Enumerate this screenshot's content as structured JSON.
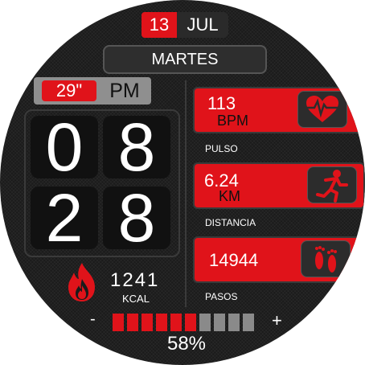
{
  "date": {
    "day": "13",
    "month": "JUL",
    "weekday": "MARTES"
  },
  "seconds": {
    "value": "29\"",
    "ampm": "PM"
  },
  "time": {
    "h1": "0",
    "h2": "8",
    "m1": "2",
    "m2": "8"
  },
  "calories": {
    "value": "1241",
    "unit": "KCAL",
    "icon": "flame-icon"
  },
  "heart": {
    "value": "113",
    "unit": "BPM",
    "label": "PULSO",
    "icon": "heart-rate-icon"
  },
  "distance": {
    "value": "6.24",
    "unit": "KM",
    "label": "DISTANCIA",
    "icon": "runner-icon"
  },
  "steps": {
    "value": "14944",
    "label": "PASOS",
    "icon": "footprints-icon"
  },
  "battery": {
    "minus": "-",
    "plus": "+",
    "percent_text": "58%",
    "level": 0.58,
    "segments_total": 10,
    "segments_filled": 6
  },
  "colors": {
    "accent": "#e0131a",
    "background": "#1b1b1b",
    "inactive_segment": "#8a8a8a"
  }
}
